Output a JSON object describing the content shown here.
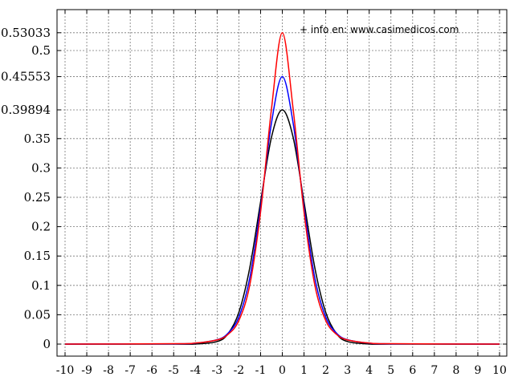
{
  "chart_data": {
    "type": "line",
    "title": "",
    "xlabel": "",
    "ylabel": "",
    "xlim": [
      -10,
      10
    ],
    "ylim": [
      0,
      0.55
    ],
    "grid": true,
    "x_ticks": [
      -10,
      -9,
      -8,
      -7,
      -6,
      -5,
      -4,
      -3,
      -2,
      -1,
      0,
      1,
      2,
      3,
      4,
      5,
      6,
      7,
      8,
      9,
      10
    ],
    "x_tick_labels": [
      "-10",
      "-9",
      "-8",
      "-7",
      "-6",
      "-5",
      "-4",
      "-3",
      "-2",
      "-1",
      "0",
      "1",
      "2",
      "3",
      "4",
      "5",
      "6",
      "7",
      "8",
      "9",
      "10"
    ],
    "y_ticks": [
      0,
      0.05,
      0.1,
      0.15,
      0.2,
      0.25,
      0.3,
      0.35,
      0.39894,
      0.45553,
      0.5,
      0.53033
    ],
    "y_tick_labels": [
      "0",
      "0.05",
      "0.1",
      "0.15",
      "0.2",
      "0.25",
      "0.3",
      "0.35",
      "0.39894",
      "0.45553",
      "0.5",
      "0.53033"
    ],
    "annotation": "+ info en: www.casimedicos.com",
    "series": [
      {
        "color": "#000000",
        "x": [
          -10,
          -5,
          -4,
          -3,
          -2.5,
          -2,
          -1.5,
          -1,
          -0.5,
          0,
          0.5,
          1,
          1.5,
          2,
          2.5,
          3,
          4,
          5,
          10
        ],
        "y": [
          0,
          1.5e-06,
          0.00013,
          0.0044,
          0.0175,
          0.054,
          0.1295,
          0.242,
          0.352,
          0.39894,
          0.352,
          0.242,
          0.1295,
          0.054,
          0.0175,
          0.0044,
          0.00013,
          1.5e-06,
          0
        ]
      },
      {
        "color": "#0000ff",
        "x": [
          -10,
          -5,
          -4,
          -3,
          -2.5,
          -2,
          -1.5,
          -1,
          -0.5,
          0,
          0.5,
          1,
          1.5,
          2,
          2.5,
          3,
          4,
          5,
          10
        ],
        "y": [
          0,
          0.0004,
          0.0016,
          0.0075,
          0.0185,
          0.046,
          0.112,
          0.233,
          0.376,
          0.45553,
          0.376,
          0.233,
          0.112,
          0.046,
          0.0185,
          0.0075,
          0.0016,
          0.0004,
          0
        ]
      },
      {
        "color": "#ff0000",
        "x": [
          -10,
          -5,
          -4,
          -3,
          -2.5,
          -2,
          -1.5,
          -1,
          -0.5,
          0,
          0.5,
          1,
          1.5,
          2,
          2.5,
          3,
          4,
          5,
          10
        ],
        "y": [
          0,
          0.0006,
          0.0018,
          0.0072,
          0.0165,
          0.04,
          0.1,
          0.225,
          0.4,
          0.53033,
          0.4,
          0.225,
          0.1,
          0.04,
          0.0165,
          0.0072,
          0.0018,
          0.0006,
          0
        ]
      }
    ]
  }
}
